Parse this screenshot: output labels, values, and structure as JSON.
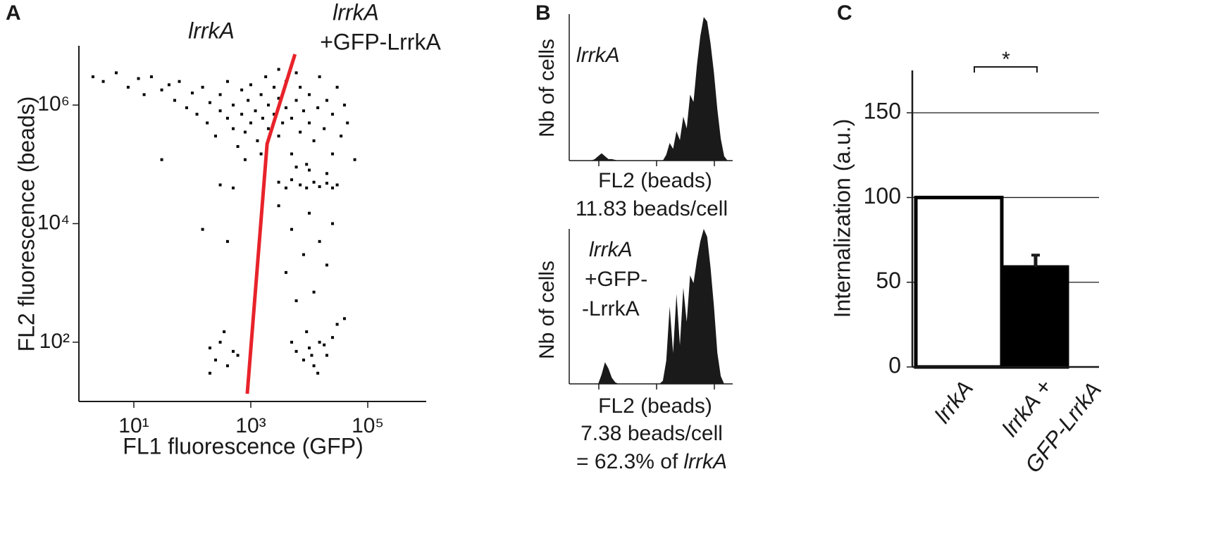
{
  "chart_data": [
    {
      "panel": "A",
      "type": "scatter",
      "x": [
        2,
        3,
        5,
        8,
        12,
        15,
        20,
        30,
        40,
        50,
        60,
        80,
        100,
        120,
        150,
        180,
        200,
        250,
        300,
        300,
        400,
        400,
        500,
        500,
        600,
        700,
        700,
        800,
        900,
        1000,
        1000,
        1200,
        1300,
        1500,
        1600,
        1800,
        2000,
        2000,
        2500,
        2500,
        3000,
        3000,
        3500,
        4000,
        4000,
        5000,
        5000,
        6000,
        7000,
        7000,
        8000,
        9000,
        10000,
        10000,
        12000,
        14000,
        15000,
        18000,
        20000,
        25000,
        25000,
        30000,
        35000,
        40000,
        45000,
        60000,
        1500,
        800,
        3000,
        6000,
        300,
        500,
        3000,
        4000,
        5000,
        7000,
        9000,
        12000,
        15000,
        20000,
        25000,
        30000,
        10000,
        6000,
        20000,
        3000,
        5000,
        8000,
        4000,
        10000,
        15000,
        12000,
        20000,
        6000,
        25000,
        150,
        400,
        30,
        8000,
        10000,
        12000,
        15000,
        20000,
        9000,
        25000,
        6000,
        14000,
        30000,
        40000,
        5000,
        11000,
        18000,
        200,
        250,
        300,
        400,
        500,
        200,
        350,
        600
      ],
      "y": [
        3000000,
        2500000,
        3500000,
        2000000,
        2800000,
        1500000,
        3000000,
        1800000,
        2200000,
        1200000,
        2500000,
        900000,
        1600000,
        700000,
        2000000,
        500000,
        1100000,
        300000,
        800000,
        1500000,
        600000,
        2500000,
        400000,
        1000000,
        200000,
        700000,
        1800000,
        350000,
        1200000,
        500000,
        2200000,
        800000,
        250000,
        1500000,
        600000,
        3000000,
        400000,
        1000000,
        700000,
        2000000,
        300000,
        1300000,
        500000,
        900000,
        2500000,
        150000,
        600000,
        1200000,
        350000,
        2000000,
        800000,
        100000,
        500000,
        1500000,
        250000,
        900000,
        3000000,
        400000,
        1200000,
        150000,
        700000,
        2000000,
        300000,
        1000000,
        500000,
        120000,
        150000,
        120000,
        4000000,
        3500000,
        45000,
        40000,
        50000,
        40000,
        55000,
        45000,
        40000,
        50000,
        42000,
        48000,
        40000,
        45000,
        80000,
        90000,
        70000,
        20000,
        8000,
        3000,
        1500,
        15000,
        5000,
        700,
        2000,
        500,
        10000,
        8000,
        5000,
        120000,
        50,
        80,
        40,
        100,
        60,
        150,
        120,
        70,
        30,
        200,
        250,
        100,
        60,
        90,
        80,
        50,
        100,
        40,
        70,
        30,
        150,
        60
      ],
      "color": "#000000",
      "xlabel": "FL1 fluorescence (GFP)",
      "ylabel": "FL2 fluorescence (beads)",
      "xscale": "log",
      "yscale": "log",
      "xlim": [
        1.25,
        1000000
      ],
      "ylim": [
        10,
        10000000
      ],
      "xticks": [
        {
          "value": 10,
          "label": "10¹"
        },
        {
          "value": 1000,
          "label": "10³"
        },
        {
          "value": 100000,
          "label": "10⁵"
        }
      ],
      "yticks": [
        {
          "value": 100,
          "label": "10²"
        },
        {
          "value": 10000,
          "label": "10⁴"
        },
        {
          "value": 1000000,
          "label": "10⁶"
        }
      ],
      "gate": {
        "color": "#e8232a",
        "x": [
          870,
          1900,
          5700
        ],
        "y": [
          13.5,
          220000,
          7200000
        ]
      },
      "annotations": [
        "lrrkA",
        "lrrkA",
        "+GFP-LrrkA"
      ]
    },
    {
      "panel": "B",
      "type": "area",
      "values": [
        0,
        0,
        0,
        0,
        0,
        0,
        0,
        1,
        3,
        5,
        3,
        1,
        1,
        0.5,
        0,
        0,
        0,
        0,
        0,
        0,
        0,
        0,
        0,
        0,
        0,
        0,
        0,
        0,
        4,
        12,
        8,
        20,
        14,
        30,
        22,
        45,
        40,
        65,
        85,
        98,
        95,
        80,
        60,
        35,
        15,
        3,
        0,
        0
      ],
      "color": "#1a1a1a",
      "ylim": [
        0,
        100
      ],
      "xlabel": "FL2 (beads)",
      "ylabel": "Nb of cells",
      "annotations": [
        "lrrkA"
      ],
      "footnote": [
        "11.83 beads/cell"
      ]
    },
    {
      "type": "area",
      "values": [
        0,
        0,
        0,
        0,
        0,
        0,
        0,
        0,
        0,
        6,
        14,
        10,
        4,
        1,
        0,
        0,
        0,
        0,
        0,
        0,
        0,
        0,
        0,
        0,
        0,
        0,
        0,
        2,
        15,
        50,
        20,
        58,
        25,
        62,
        40,
        70,
        65,
        80,
        92,
        100,
        95,
        75,
        50,
        20,
        5,
        0,
        0,
        0
      ],
      "color": "#1a1a1a",
      "ylim": [
        0,
        100
      ],
      "xlabel": "FL2 (beads)",
      "ylabel": "Nb of cells",
      "annotations": [
        "lrrkA",
        "+GFP-",
        "-LrrkA"
      ],
      "footnote": [
        "7.38 beads/cell",
        [
          "= 62.3% of",
          "lrrkA"
        ]
      ]
    },
    {
      "panel": "C",
      "type": "bar",
      "categories": [
        [
          "lrrkA"
        ],
        [
          "lrrkA +",
          "GFP-LrrkA"
        ]
      ],
      "values": [
        100,
        59
      ],
      "errors": [
        null,
        7
      ],
      "colors": [
        "#ffffff",
        "#000000"
      ],
      "edgecolor": "#000000",
      "ylabel": "Internalization (a.u.)",
      "ylim": [
        0,
        175
      ],
      "yticks": [
        0,
        50,
        100,
        150
      ],
      "grid": true,
      "annotations": [
        "*"
      ]
    }
  ]
}
